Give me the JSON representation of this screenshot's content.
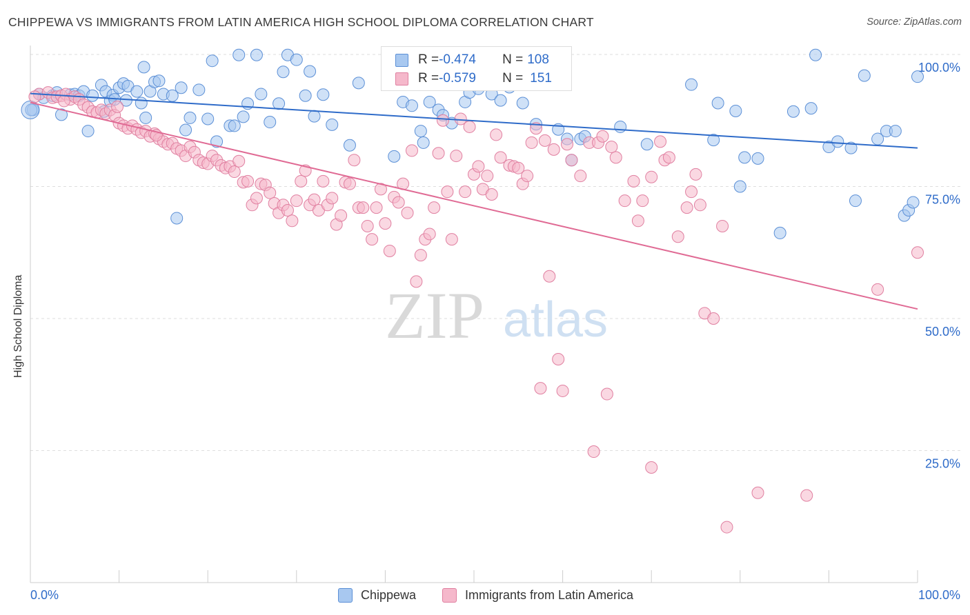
{
  "header": {
    "title": "CHIPPEWA VS IMMIGRANTS FROM LATIN AMERICA HIGH SCHOOL DIPLOMA CORRELATION CHART",
    "source": "Source: ZipAtlas.com"
  },
  "watermark": {
    "zip": "ZIP",
    "atlas": "atlas"
  },
  "legend": {
    "rows": [
      {
        "r_label": "R = ",
        "r_value": "-0.474",
        "n_label": "N = ",
        "n_value": "108",
        "color": "#a8c8f0",
        "stroke": "#5b8fd6"
      },
      {
        "r_label": "R = ",
        "r_value": "-0.579",
        "n_label": "N = ",
        "n_value": "151",
        "color": "#f5b8cb",
        "stroke": "#e07fa0"
      }
    ]
  },
  "bottom_legend": [
    "Chippewa",
    "Immigrants from Latin America"
  ],
  "chart_data": {
    "type": "scatter",
    "title": "CHIPPEWA VS IMMIGRANTS FROM LATIN AMERICA HIGH SCHOOL DIPLOMA CORRELATION CHART",
    "xlabel": "",
    "ylabel": "High School Diploma",
    "xlim": [
      0,
      100
    ],
    "ylim": [
      0,
      100
    ],
    "x_tick_labels": [
      "0.0%",
      "100.0%"
    ],
    "y_tick_labels": [
      "100.0%",
      "75.0%",
      "50.0%",
      "25.0%"
    ],
    "y_tick_values": [
      100,
      75,
      50,
      25
    ],
    "grid": true,
    "legend_position": "top-center",
    "colors": {
      "blue_fill": "#a8c8f0",
      "blue_stroke": "#5b8fd6",
      "blue_line": "#2e6bc9",
      "pink_fill": "#f5b8cb",
      "pink_stroke": "#e07fa0",
      "pink_line": "#e06a94",
      "tick_label": "#2e6bc9"
    },
    "series": [
      {
        "name": "Chippewa",
        "r": -0.474,
        "n": 108,
        "trend": [
          [
            0,
            92.6
          ],
          [
            100,
            82.3
          ]
        ],
        "points": [
          [
            0.3,
            89.5
          ],
          [
            1,
            92.5
          ],
          [
            1.5,
            91.8
          ],
          [
            2.5,
            92.2
          ],
          [
            3,
            92.8
          ],
          [
            3.5,
            88.6
          ],
          [
            4.5,
            92.4
          ],
          [
            5,
            92.5
          ],
          [
            5.5,
            92.2
          ],
          [
            6,
            93
          ],
          [
            6.5,
            85.5
          ],
          [
            7,
            92.2
          ],
          [
            8,
            94.2
          ],
          [
            8.3,
            89.2
          ],
          [
            8.5,
            93
          ],
          [
            9,
            91.2
          ],
          [
            9.3,
            92.3
          ],
          [
            10,
            93.7
          ],
          [
            10.5,
            94.5
          ],
          [
            10.8,
            91.3
          ],
          [
            11,
            94
          ],
          [
            12,
            93
          ],
          [
            12.5,
            90.8
          ],
          [
            12.8,
            97.6
          ],
          [
            13,
            88
          ],
          [
            13.5,
            93
          ],
          [
            14,
            94.8
          ],
          [
            14.5,
            95
          ],
          [
            15,
            92.5
          ],
          [
            16,
            92.2
          ],
          [
            16.5,
            69
          ],
          [
            17,
            93.7
          ],
          [
            17.5,
            85.7
          ],
          [
            18,
            88
          ],
          [
            19,
            93.3
          ],
          [
            20,
            87.8
          ],
          [
            20.5,
            98.8
          ],
          [
            21,
            83.5
          ],
          [
            22.5,
            86.5
          ],
          [
            23,
            86.5
          ],
          [
            23.5,
            99.9
          ],
          [
            24,
            88.2
          ],
          [
            24.5,
            90.7
          ],
          [
            25.5,
            99.9
          ],
          [
            26,
            92.5
          ],
          [
            27,
            87.2
          ],
          [
            28,
            90.7
          ],
          [
            28.5,
            96.7
          ],
          [
            29,
            99.9
          ],
          [
            30,
            99
          ],
          [
            31,
            92.2
          ],
          [
            31.5,
            96.8
          ],
          [
            32,
            88.3
          ],
          [
            33,
            92.4
          ],
          [
            34,
            86.7
          ],
          [
            36,
            82.8
          ],
          [
            37,
            94.6
          ],
          [
            41,
            80.7
          ],
          [
            42,
            91
          ],
          [
            43,
            90.3
          ],
          [
            44,
            85.5
          ],
          [
            44.3,
            83.3
          ],
          [
            45,
            91
          ],
          [
            46,
            89.5
          ],
          [
            46.5,
            88.5
          ],
          [
            47.5,
            87
          ],
          [
            49,
            91
          ],
          [
            49.5,
            92.8
          ],
          [
            50.5,
            93.5
          ],
          [
            52,
            92.5
          ],
          [
            53,
            91.3
          ],
          [
            54,
            93.8
          ],
          [
            55.5,
            90.8
          ],
          [
            57,
            86.8
          ],
          [
            59.5,
            85.8
          ],
          [
            60.5,
            84
          ],
          [
            61,
            80
          ],
          [
            62,
            84
          ],
          [
            62.5,
            84.5
          ],
          [
            66.5,
            86.3
          ],
          [
            69.5,
            83
          ],
          [
            74.5,
            94.3
          ],
          [
            77,
            83.8
          ],
          [
            77.5,
            90.8
          ],
          [
            79.5,
            89.3
          ],
          [
            80,
            75
          ],
          [
            80.5,
            80.5
          ],
          [
            82,
            80.3
          ],
          [
            84.5,
            66.2
          ],
          [
            86,
            89.2
          ],
          [
            88,
            89.8
          ],
          [
            88.5,
            99.9
          ],
          [
            90,
            82.5
          ],
          [
            91,
            83.5
          ],
          [
            92.5,
            82.3
          ],
          [
            93,
            72.3
          ],
          [
            94,
            96
          ],
          [
            95.5,
            84
          ],
          [
            96.5,
            85.5
          ],
          [
            97.5,
            85.5
          ],
          [
            98.5,
            69.5
          ],
          [
            99,
            70.5
          ],
          [
            99.5,
            72
          ],
          [
            100,
            95.8
          ],
          [
            0.1,
            89.5
          ],
          [
            9.5,
            91.5
          ]
        ]
      },
      {
        "name": "Immigrants from Latin America",
        "r": -0.579,
        "n": 151,
        "trend": [
          [
            0,
            90.9
          ],
          [
            100,
            51.8
          ]
        ],
        "points": [
          [
            1,
            92.5
          ],
          [
            2,
            92.8
          ],
          [
            2.5,
            91.8
          ],
          [
            3,
            92
          ],
          [
            3.5,
            92.2
          ],
          [
            4,
            92.5
          ],
          [
            4.5,
            91.5
          ],
          [
            5,
            92
          ],
          [
            5.5,
            91.5
          ],
          [
            6,
            90.5
          ],
          [
            6.5,
            90
          ],
          [
            7,
            89.2
          ],
          [
            7.5,
            89
          ],
          [
            8,
            89.5
          ],
          [
            8.5,
            88.8
          ],
          [
            9,
            89.5
          ],
          [
            9.5,
            88.5
          ],
          [
            10,
            87
          ],
          [
            10.5,
            86.5
          ],
          [
            11,
            86
          ],
          [
            11.5,
            86.5
          ],
          [
            12,
            85.8
          ],
          [
            12.5,
            85.2
          ],
          [
            13,
            85.5
          ],
          [
            13.5,
            84.5
          ],
          [
            14,
            85
          ],
          [
            14.5,
            84
          ],
          [
            15,
            83.5
          ],
          [
            15.5,
            83
          ],
          [
            16,
            83.2
          ],
          [
            16.5,
            82.2
          ],
          [
            17,
            81.8
          ],
          [
            17.5,
            80.8
          ],
          [
            18,
            82.5
          ],
          [
            18.5,
            81.5
          ],
          [
            19,
            80
          ],
          [
            19.5,
            79.5
          ],
          [
            20,
            79.3
          ],
          [
            20.5,
            80.8
          ],
          [
            21,
            80
          ],
          [
            21.5,
            79
          ],
          [
            22,
            78.5
          ],
          [
            22.5,
            78.8
          ],
          [
            23,
            77.8
          ],
          [
            23.5,
            79.8
          ],
          [
            24,
            75.8
          ],
          [
            24.5,
            76
          ],
          [
            25,
            71.5
          ],
          [
            25.5,
            72.8
          ],
          [
            26,
            75.5
          ],
          [
            26.5,
            75.3
          ],
          [
            27,
            73.8
          ],
          [
            27.5,
            71.8
          ],
          [
            28,
            70
          ],
          [
            28.5,
            71.5
          ],
          [
            29,
            70.5
          ],
          [
            29.5,
            68.5
          ],
          [
            30,
            72.3
          ],
          [
            30.5,
            76
          ],
          [
            31,
            78
          ],
          [
            31.5,
            71.5
          ],
          [
            32,
            72.5
          ],
          [
            32.5,
            70.5
          ],
          [
            33,
            76
          ],
          [
            33.5,
            71.5
          ],
          [
            34,
            72.8
          ],
          [
            34.5,
            67.8
          ],
          [
            35,
            69.5
          ],
          [
            35.5,
            75.8
          ],
          [
            36,
            75.5
          ],
          [
            36.5,
            80
          ],
          [
            37,
            71
          ],
          [
            37.5,
            71
          ],
          [
            38,
            67.5
          ],
          [
            38.5,
            65
          ],
          [
            39,
            71
          ],
          [
            39.5,
            74.5
          ],
          [
            40,
            68
          ],
          [
            40.5,
            62.8
          ],
          [
            41,
            73
          ],
          [
            41.5,
            72
          ],
          [
            42,
            75.5
          ],
          [
            42.5,
            70
          ],
          [
            43,
            81.8
          ],
          [
            43.5,
            57
          ],
          [
            44,
            62
          ],
          [
            44.5,
            65
          ],
          [
            45,
            66
          ],
          [
            45.5,
            71
          ],
          [
            46,
            81.3
          ],
          [
            46.5,
            87.5
          ],
          [
            47,
            74
          ],
          [
            47.5,
            65
          ],
          [
            48,
            80.8
          ],
          [
            48.5,
            87.8
          ],
          [
            49,
            74
          ],
          [
            49.5,
            86.3
          ],
          [
            50,
            77.3
          ],
          [
            50.5,
            78.8
          ],
          [
            51,
            74.5
          ],
          [
            51.5,
            77
          ],
          [
            52,
            73.5
          ],
          [
            52.5,
            84.8
          ],
          [
            53,
            80.5
          ],
          [
            54,
            79
          ],
          [
            54.5,
            78.8
          ],
          [
            55,
            78.5
          ],
          [
            55.5,
            75.5
          ],
          [
            56,
            77
          ],
          [
            56.5,
            83.3
          ],
          [
            57,
            86
          ],
          [
            57.5,
            36.8
          ],
          [
            58,
            83.7
          ],
          [
            58.5,
            58
          ],
          [
            59,
            82
          ],
          [
            59.5,
            42.3
          ],
          [
            60,
            36.3
          ],
          [
            60.5,
            83
          ],
          [
            61,
            80
          ],
          [
            62,
            77
          ],
          [
            63,
            83.3
          ],
          [
            63.5,
            24.8
          ],
          [
            64,
            83.3
          ],
          [
            64.5,
            84.5
          ],
          [
            65,
            35.7
          ],
          [
            65.5,
            82.5
          ],
          [
            66,
            80.5
          ],
          [
            67,
            72.3
          ],
          [
            68,
            76
          ],
          [
            68.5,
            68.5
          ],
          [
            69,
            72.3
          ],
          [
            70,
            76.8
          ],
          [
            71,
            83.5
          ],
          [
            71.5,
            80
          ],
          [
            72,
            80.5
          ],
          [
            73,
            65.5
          ],
          [
            74,
            71
          ],
          [
            74.5,
            74
          ],
          [
            75,
            77.3
          ],
          [
            75.5,
            71.5
          ],
          [
            76,
            51
          ],
          [
            77,
            50
          ],
          [
            78,
            67.5
          ],
          [
            82,
            17
          ],
          [
            87.5,
            16.5
          ],
          [
            78.5,
            10.5
          ],
          [
            70,
            21.8
          ],
          [
            95.5,
            55.5
          ],
          [
            100,
            62.5
          ],
          [
            0.5,
            92
          ],
          [
            3.8,
            91.2
          ],
          [
            9.8,
            90.1
          ],
          [
            14.2,
            84.7
          ]
        ]
      }
    ]
  }
}
